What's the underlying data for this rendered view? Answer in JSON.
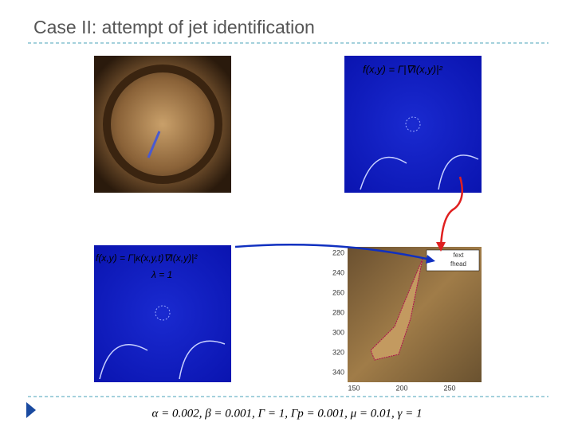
{
  "header": {
    "title": "Case II: attempt of jet identification"
  },
  "panels": {
    "top_right": {
      "formula": "f(x,y) = Γ|∇I(x,y)|²"
    },
    "bottom_left": {
      "formula": "f(x,y) = Γ|κ(x,y,t)∇I(x,y)|²",
      "note": "λ = 1"
    },
    "bottom_right": {
      "y_tick_labels": [
        "220",
        "240",
        "260",
        "280",
        "300",
        "320",
        "340"
      ],
      "x_tick_labels": [
        "150",
        "200",
        "250"
      ],
      "legend": [
        "fext",
        "fhead"
      ]
    }
  },
  "footer": {
    "parameters": "α = 0.002,  β = 0.001,  Γ = 1,  Γp = 0.001,  μ = 0.01,  γ = 1"
  }
}
